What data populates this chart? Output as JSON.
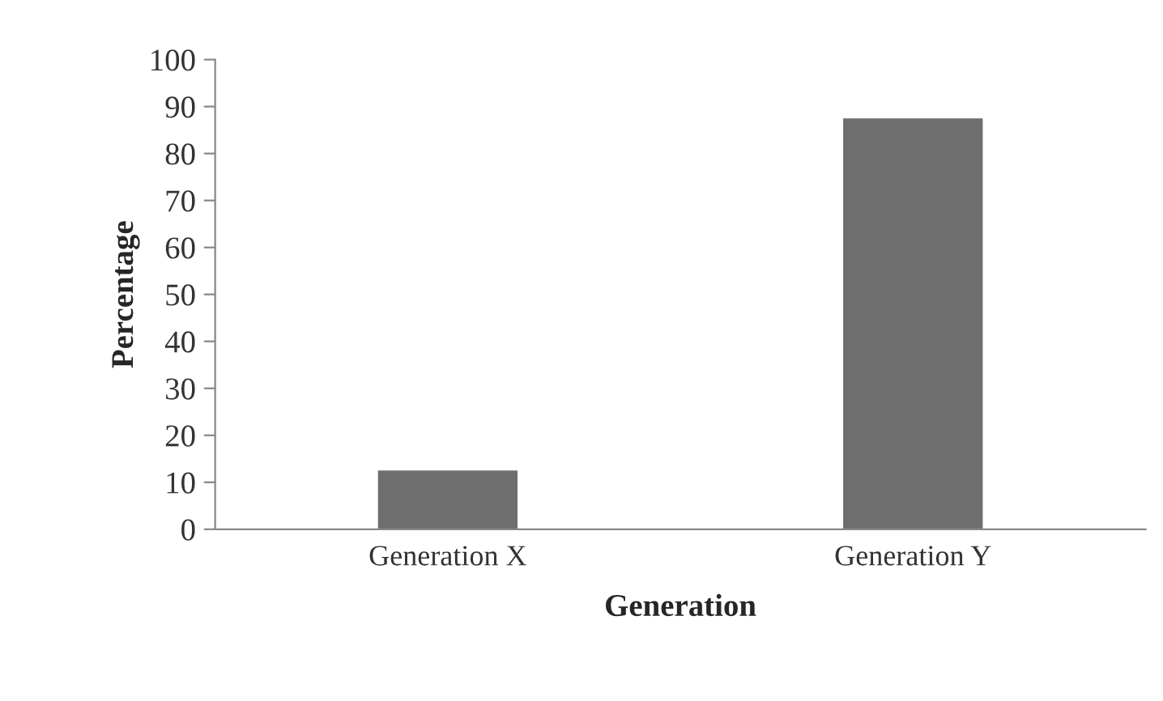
{
  "chart_data": {
    "type": "bar",
    "xlabel": "Generation",
    "ylabel": "Percentage",
    "categories": [
      "Generation X",
      "Generation Y"
    ],
    "values": [
      12.5,
      87.5
    ],
    "color": "#6e6e6e",
    "ylim": [
      0,
      100
    ],
    "yticks": [
      0,
      10,
      20,
      30,
      40,
      50,
      60,
      70,
      80,
      90,
      100
    ],
    "grid": false,
    "legend": false
  }
}
